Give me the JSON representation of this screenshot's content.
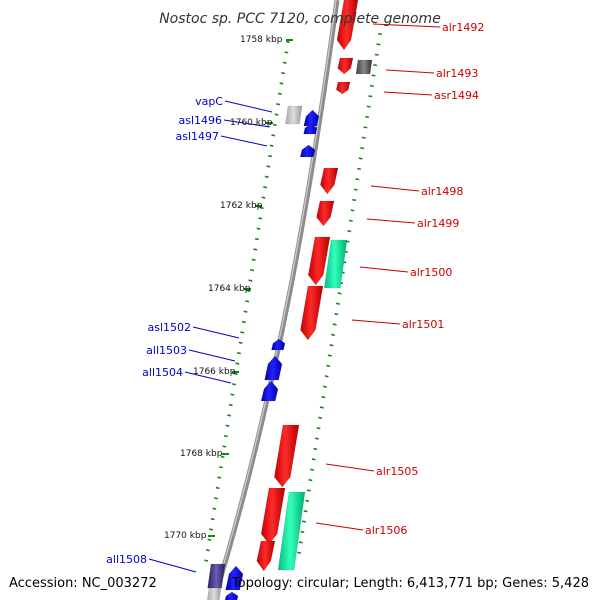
{
  "title": "Nostoc sp. PCC 7120, complete genome",
  "accession": "Accession: NC_003272",
  "topology": "Topology: circular; Length: 6,413,771 bp; Genes: 5,428",
  "colors": {
    "forward_gene": "#ff0000",
    "reverse_gene": "#0000ff",
    "rna_gene": "#00ee99",
    "grey_gene": "#888888",
    "pseudo_gene": "#4a3c8c",
    "axis": "#888888",
    "ticks": "#118811"
  },
  "kbp_marks": [
    "1758 kbp",
    "1760 kbp",
    "1762 kbp",
    "1764 kbp",
    "1766 kbp",
    "1768 kbp",
    "1770 kbp"
  ],
  "right_labels": [
    "alr1492",
    "alr1493",
    "asr1494",
    "alr1498",
    "alr1499",
    "alr1500",
    "alr1501",
    "alr1505",
    "alr1506"
  ],
  "left_labels": [
    "vapC",
    "asl1496",
    "asl1497",
    "asl1502",
    "all1503",
    "all1504",
    "all1508"
  ]
}
